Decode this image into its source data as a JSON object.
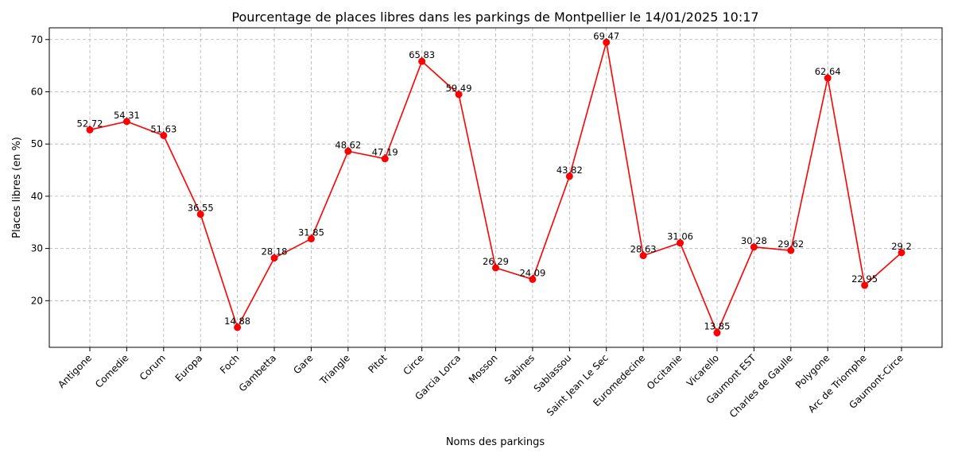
{
  "chart_data": {
    "type": "line",
    "title": "Pourcentage de places libres dans les parkings de Montpellier le 14/01/2025 10:17",
    "xlabel": "Noms des parkings",
    "ylabel": "Places libres (en %)",
    "categories": [
      "Antigone",
      "Comedie",
      "Corum",
      "Europa",
      "Foch",
      "Gambetta",
      "Gare",
      "Triangle",
      "Pitot",
      "Circe",
      "Garcia Lorca",
      "Mosson",
      "Sabines",
      "Sablassou",
      "Saint Jean Le Sec",
      "Euromedecine",
      "Occitanie",
      "Vicarello",
      "Gaumont EST",
      "Charles de Gaulle",
      "Polygone",
      "Arc de Triomphe",
      "Gaumont-Circe"
    ],
    "series": [
      {
        "values": [
          52.72,
          54.31,
          51.63,
          36.55,
          14.88,
          28.18,
          31.85,
          48.62,
          47.19,
          65.83,
          59.49,
          26.29,
          24.09,
          43.82,
          69.47,
          28.63,
          31.06,
          13.85,
          30.28,
          29.62,
          62.64,
          22.95,
          29.2
        ],
        "labels": [
          "52.72",
          "54.31",
          "51.63",
          "36.55",
          "14.88",
          "28.18",
          "31.85",
          "48.62",
          "47.19",
          "65.83",
          "59.49",
          "26.29",
          "24.09",
          "43.82",
          "69.47",
          "28.63",
          "31.06",
          "13.85",
          "30.28",
          "29.62",
          "62.64",
          "22.95",
          "29.2"
        ],
        "color": "#ff0000"
      }
    ],
    "yticks": [
      20,
      30,
      40,
      50,
      60,
      70
    ],
    "yticklabels": [
      "20",
      "30",
      "40",
      "50",
      "60",
      "70"
    ],
    "ylim": [
      11.07,
      72.25
    ],
    "grid": true
  }
}
